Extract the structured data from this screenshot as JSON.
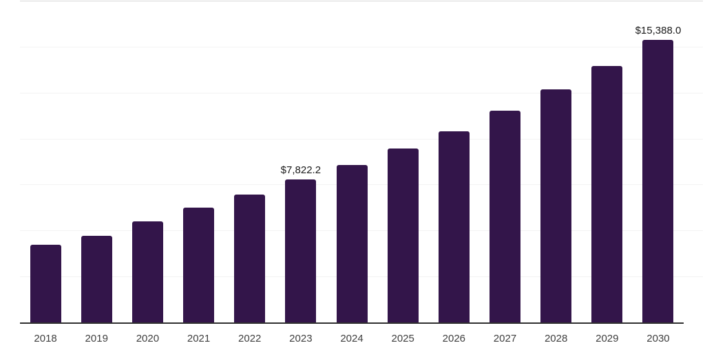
{
  "chart_data": {
    "type": "bar",
    "title": "",
    "xlabel": "",
    "ylabel": "",
    "categories": [
      "2018",
      "2019",
      "2020",
      "2021",
      "2022",
      "2023",
      "2024",
      "2025",
      "2026",
      "2027",
      "2028",
      "2029",
      "2030"
    ],
    "values": [
      4267,
      4736,
      5517,
      6287,
      7005,
      7822.2,
      8619,
      9486,
      10442,
      11569,
      12696,
      13987,
      15388
    ],
    "bar_labels": [
      "",
      "",
      "",
      "",
      "",
      "$7,822.2",
      "",
      "",
      "",
      "",
      "",
      "",
      "$15,388.0"
    ],
    "ylim": [
      0,
      17500
    ],
    "gridline_interval": 2500,
    "grid": "horizontal",
    "legend_position": "none"
  },
  "style": {
    "bar_color": "#33154a",
    "gridline_color": "#f3f3f3",
    "top_line_color": "#d8d8d8",
    "axis_line_color": "#2f2f2f",
    "year_label_color": "#3f3f3f",
    "value_label_color": "#1a1a1a",
    "background_color": "#ffffff"
  }
}
